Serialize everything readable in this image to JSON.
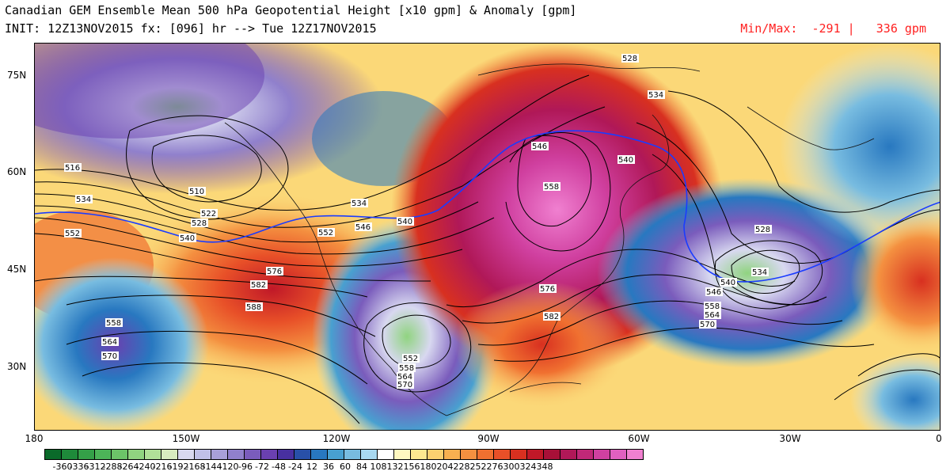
{
  "header": {
    "title": "Canadian GEM Ensemble Mean 500 hPa Geopotential Height [x10 gpm] & Anomaly [gpm]",
    "init": "INIT: 12Z13NOV2015 fx: [096] hr --> Tue 12Z17NOV2015",
    "minmax": "Min/Max:  -291 |   336 gpm"
  },
  "axes": {
    "lat_labels": [
      "75N",
      "60N",
      "45N",
      "30N"
    ],
    "lon_labels": [
      "180",
      "150W",
      "120W",
      "90W",
      "60W",
      "30W",
      "0"
    ]
  },
  "colorbar": {
    "labels": [
      "-360",
      "-336",
      "-312",
      "-288",
      "-264",
      "-240",
      "-216",
      "-192",
      "-168",
      "-144",
      "-120",
      "-96",
      "-72",
      "-48",
      "-24",
      "12",
      "36",
      "60",
      "84",
      "108",
      "132",
      "156",
      "180",
      "204",
      "228",
      "252",
      "276",
      "300",
      "324",
      "348"
    ],
    "colors": [
      "#0a6a2a",
      "#1e8a3a",
      "#34a048",
      "#4cb458",
      "#6cc468",
      "#90d480",
      "#b0e098",
      "#d8ecc0",
      "#d8d8f0",
      "#c0c0e8",
      "#a8a0d8",
      "#9080cc",
      "#7a5cbc",
      "#6a40b0",
      "#4830a0",
      "#2850a8",
      "#2878c0",
      "#48a0d0",
      "#78bce0",
      "#a8d8f0",
      "#ffffff",
      "#fff8c0",
      "#fde890",
      "#fbd070",
      "#f8b050",
      "#f49040",
      "#f07030",
      "#e85028",
      "#d83020",
      "#c01828",
      "#a81038",
      "#b01858",
      "#c02878",
      "#d040a0",
      "#e060c0",
      "#f080d0"
    ]
  },
  "contour_labels": [
    {
      "v": "516"
    },
    {
      "v": "510"
    },
    {
      "v": "534"
    },
    {
      "v": "522"
    },
    {
      "v": "528"
    },
    {
      "v": "552"
    },
    {
      "v": "540"
    },
    {
      "v": "534"
    },
    {
      "v": "546"
    },
    {
      "v": "540"
    },
    {
      "v": "552"
    },
    {
      "v": "576"
    },
    {
      "v": "582"
    },
    {
      "v": "588"
    },
    {
      "v": "558"
    },
    {
      "v": "564"
    },
    {
      "v": "570"
    },
    {
      "v": "552"
    },
    {
      "v": "558"
    },
    {
      "v": "564"
    },
    {
      "v": "570"
    },
    {
      "v": "546"
    },
    {
      "v": "558"
    },
    {
      "v": "540"
    },
    {
      "v": "528"
    },
    {
      "v": "534"
    },
    {
      "v": "576"
    },
    {
      "v": "582"
    },
    {
      "v": "528"
    },
    {
      "v": "534"
    },
    {
      "v": "540"
    },
    {
      "v": "546"
    },
    {
      "v": "558"
    },
    {
      "v": "564"
    },
    {
      "v": "570"
    }
  ]
}
